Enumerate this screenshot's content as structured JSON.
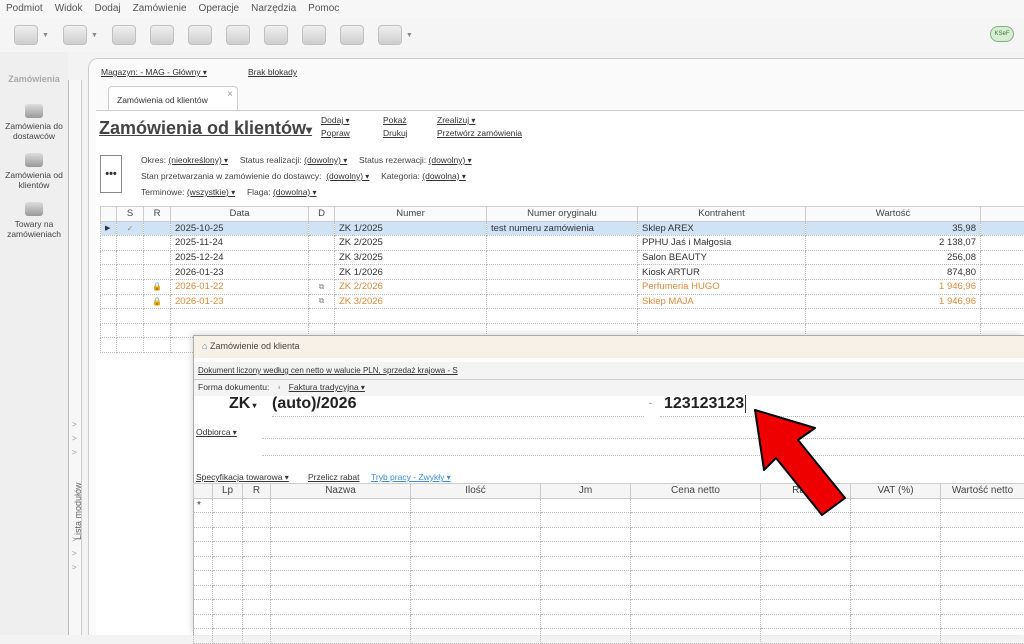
{
  "menu": [
    "Podmiot",
    "Widok",
    "Dodaj",
    "Zamówienie",
    "Operacje",
    "Narzędzia",
    "Pomoc"
  ],
  "toolbar": {
    "ksef_label": "KSeF"
  },
  "sidebar": {
    "title": "Zamówienia",
    "items": [
      {
        "label": "Zamówienia do dostawców"
      },
      {
        "label": "Zamówienia od klientów"
      },
      {
        "label": "Towary na zamówieniach"
      }
    ],
    "module_list": "Lista modułów"
  },
  "header": {
    "magazyn": "Magazyn: - MAG - Główny",
    "blokada": "Brak blokady"
  },
  "tab": {
    "label": "Zamówienia od klientów",
    "close": "×"
  },
  "page": {
    "title": "Zamówienia od klientów",
    "title_caret": "▾",
    "actions": {
      "dodaj": "Dodaj",
      "popraw": "Popraw",
      "pokaz": "Pokaż",
      "drukuj": "Drukuj",
      "zrealizuj": "Zrealizuj",
      "przetworz": "Przetwórz zamówienia"
    }
  },
  "filters": {
    "more": "•••",
    "okres_label": "Okres:",
    "okres": "(nieokreślony)",
    "status_real_label": "Status realizacji:",
    "status_real": "(dowolny)",
    "status_rez_label": "Status rezerwacji:",
    "status_rez": "(dowolny)",
    "stan_label": "Stan przetwarzania w zamówienie do dostawcy:",
    "stan": "(dowolny)",
    "kategoria_label": "Kategoria:",
    "kategoria": "(dowolna)",
    "terminowe_label": "Terminowe:",
    "terminowe": "(wszystkie)",
    "flaga_label": "Flaga:",
    "flaga": "(dowolna)"
  },
  "grid": {
    "columns": [
      "",
      "S",
      "R",
      "Data",
      "D",
      "Numer",
      "Numer oryginału",
      "Kontrahent",
      "Wartość",
      ""
    ],
    "rows": [
      {
        "s": "✓",
        "r": "",
        "data": "2025-10-25",
        "d": "",
        "numer": "ZK 1/2025",
        "oryg": "test numeru zamówienia",
        "kontrahent": "Sklep AREX",
        "wartosc": "35,98"
      },
      {
        "s": "",
        "r": "",
        "data": "2025-11-24",
        "d": "",
        "numer": "ZK 2/2025",
        "oryg": "",
        "kontrahent": "PPHU Jaś i Małgosia",
        "wartosc": "2 138,07"
      },
      {
        "s": "",
        "r": "",
        "data": "2025-12-24",
        "d": "",
        "numer": "ZK 3/2025",
        "oryg": "",
        "kontrahent": "Salon BEAUTY",
        "wartosc": "256,08"
      },
      {
        "s": "",
        "r": "",
        "data": "2026-01-23",
        "d": "",
        "numer": "ZK 1/2026",
        "oryg": "",
        "kontrahent": "Kiosk ARTUR",
        "wartosc": "874,80"
      },
      {
        "s": "",
        "r": "🔒",
        "data": "2026-01-22",
        "d": "⧉",
        "numer": "ZK 2/2026",
        "oryg": "",
        "kontrahent": "Perfumeria HUGO",
        "wartosc": "1 946,96"
      },
      {
        "s": "",
        "r": "🔒",
        "data": "2026-01-23",
        "d": "⧉",
        "numer": "ZK 3/2026",
        "oryg": "",
        "kontrahent": "Sklep MAJA",
        "wartosc": "1 946,96"
      }
    ]
  },
  "dialog": {
    "title": "Zamówienie od klienta",
    "info": "Dokument liczony według cen netto w walucie PLN, sprzedaż krajowa - S",
    "forma_label": "Forma dokumentu:",
    "forma": "Faktura tradycyjna",
    "prefix": "ZK",
    "number": "(auto)/2026",
    "dash": "-",
    "orig_number": "123123123",
    "odbiorca": "Odbiorca",
    "spec": "Specyfikacja towarowa",
    "przelicz": "Przelicz rabat",
    "tryb": "Tryb pracy - Zwykły",
    "columns": [
      "",
      "Lp",
      "R",
      "Nazwa",
      "Ilość",
      "Jm",
      "Cena netto",
      "Rabat",
      "VAT (%)",
      "Wartość netto"
    ],
    "new_row": "*"
  },
  "colors": {
    "selected_row": "#cfe2f6",
    "orange_text": "#e08a3c",
    "arrow": "#ee0000",
    "link_blue": "#3b8fd0"
  }
}
